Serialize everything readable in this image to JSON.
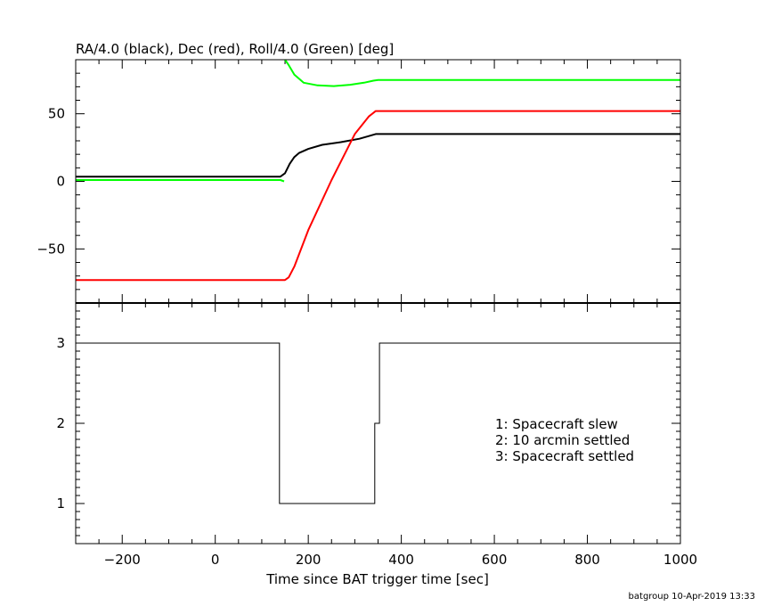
{
  "chart_data": [
    {
      "type": "line",
      "title": "RA/4.0 (black), Dec (red), Roll/4.0 (Green) [deg]",
      "xlim": [
        -300,
        1000
      ],
      "ylim": [
        -90,
        90
      ],
      "yticks": [
        -50,
        0,
        50
      ],
      "ytick_labels": [
        "−50",
        "0",
        "50"
      ],
      "series": [
        {
          "name": "RA/4.0",
          "color": "#000000",
          "points": [
            [
              -300,
              3.5
            ],
            [
              140,
              3.5
            ],
            [
              150,
              6
            ],
            [
              160,
              13
            ],
            [
              170,
              18
            ],
            [
              180,
              21
            ],
            [
              200,
              24
            ],
            [
              230,
              27
            ],
            [
              270,
              29
            ],
            [
              310,
              31.5
            ],
            [
              330,
              33.5
            ],
            [
              345,
              35
            ],
            [
              1000,
              35
            ]
          ]
        },
        {
          "name": "Dec",
          "color": "#ff0000",
          "points": [
            [
              -300,
              -73
            ],
            [
              140,
              -73
            ],
            [
              150,
              -73
            ],
            [
              158,
              -71
            ],
            [
              170,
              -63
            ],
            [
              200,
              -36
            ],
            [
              250,
              1
            ],
            [
              300,
              35
            ],
            [
              330,
              48
            ],
            [
              345,
              52
            ],
            [
              1000,
              52
            ]
          ]
        },
        {
          "name": "Roll/4.0",
          "color": "#00ff00",
          "points_a": [
            [
              -300,
              1
            ],
            [
              140,
              1
            ],
            [
              148,
              0
            ]
          ],
          "points_b": [
            [
              150,
              90
            ],
            [
              158,
              86
            ],
            [
              170,
              79
            ],
            [
              190,
              73
            ],
            [
              220,
              71
            ],
            [
              255,
              70.5
            ],
            [
              290,
              71.5
            ],
            [
              320,
              73
            ],
            [
              340,
              74.5
            ],
            [
              350,
              75
            ],
            [
              1000,
              75
            ]
          ]
        }
      ]
    },
    {
      "type": "line",
      "xlabel": "Time since BAT trigger time [sec]",
      "xlim": [
        -300,
        1000
      ],
      "ylim": [
        0.5,
        3.5
      ],
      "xticks": [
        -200,
        0,
        200,
        400,
        600,
        800,
        1000
      ],
      "xtick_labels": [
        "−200",
        "0",
        "200",
        "400",
        "600",
        "800",
        "1000"
      ],
      "yticks": [
        1,
        2,
        3
      ],
      "ytick_labels": [
        "1",
        "2",
        "3"
      ],
      "series": [
        {
          "color": "#000000",
          "steps": [
            [
              -300,
              3
            ],
            [
              138,
              3
            ],
            [
              138,
              1
            ],
            [
              343,
              1
            ],
            [
              343,
              2
            ],
            [
              353,
              2
            ],
            [
              353,
              3
            ],
            [
              1000,
              3
            ]
          ]
        }
      ],
      "legend": [
        "1: Spacecraft slew",
        "2: 10 arcmin settled",
        "3: Spacecraft settled"
      ]
    }
  ],
  "footer": "batgroup 10-Apr-2019 13:33"
}
